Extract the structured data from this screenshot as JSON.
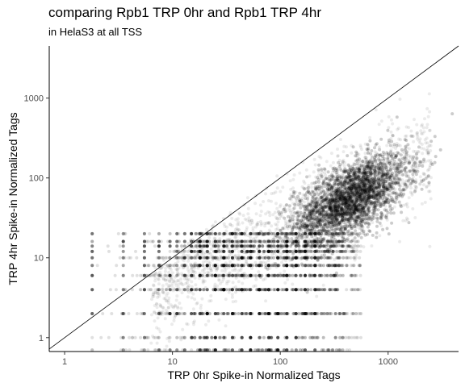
{
  "chart_data": {
    "type": "scatter",
    "title": "comparing Rpb1 TRP 0hr and Rpb1 TRP 4hr",
    "subtitle": "in HelaS3 at all TSS",
    "xlabel": "TRP 0hr Spike-in Normalized Tags",
    "ylabel": "TRP 4hr Spike-in Normalized Tags",
    "xscale": "log10",
    "yscale": "log10",
    "xlim": [
      0.72,
      4500
    ],
    "ylim": [
      0.67,
      4500
    ],
    "xticks": [
      1,
      10,
      100,
      1000
    ],
    "xtick_labels": [
      "1",
      "10",
      "100",
      "1000"
    ],
    "yticks": [
      1,
      10,
      100,
      1000
    ],
    "ytick_labels": [
      "1",
      "10",
      "100",
      "1000"
    ],
    "grid": false,
    "reference_line": "y = x",
    "point_color": "#000000",
    "line_color": "#000000",
    "summary": {
      "dense_cluster_center_x": 450,
      "dense_cluster_center_y": 55,
      "discrete_y_levels": [
        0.7,
        1,
        2,
        4,
        6,
        8,
        10,
        12,
        14,
        16,
        20
      ]
    }
  }
}
